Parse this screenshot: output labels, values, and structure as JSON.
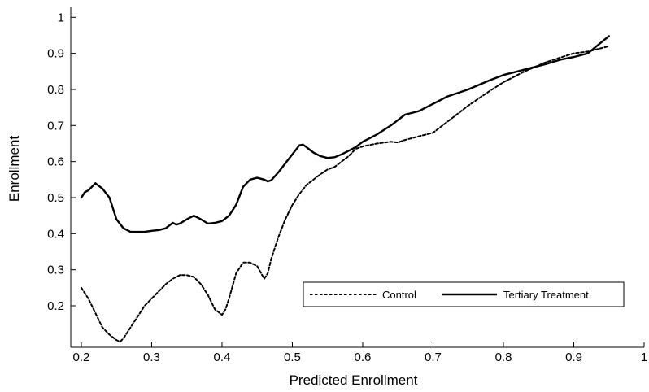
{
  "chart_data": {
    "type": "line",
    "title": "",
    "xlabel": "Predicted Enrollment",
    "ylabel": "Enrollment",
    "xlim": [
      0.185,
      1.0
    ],
    "ylim": [
      0.085,
      1.03
    ],
    "xticks": [
      0.2,
      0.3,
      0.4,
      0.5,
      0.6,
      0.7,
      0.8,
      0.9,
      1
    ],
    "xtick_labels": [
      "0.2",
      "0.3",
      "0.4",
      "0.5",
      "0.6",
      "0.7",
      "0.8",
      "0.9",
      "1"
    ],
    "yticks": [
      0.2,
      0.3,
      0.4,
      0.5,
      0.6,
      0.7,
      0.8,
      0.9,
      1
    ],
    "ytick_labels": [
      "0.2",
      "0.3",
      "0.4",
      "0.5",
      "0.6",
      "0.7",
      "0.8",
      "0.9",
      "1"
    ],
    "grid": false,
    "legend_position": "bottom-right",
    "series": [
      {
        "name": "Control",
        "style": "dashed",
        "color": "#000000",
        "x": [
          0.2,
          0.21,
          0.22,
          0.23,
          0.24,
          0.25,
          0.255,
          0.26,
          0.27,
          0.28,
          0.29,
          0.3,
          0.31,
          0.32,
          0.33,
          0.34,
          0.35,
          0.36,
          0.37,
          0.38,
          0.39,
          0.4,
          0.405,
          0.41,
          0.42,
          0.43,
          0.44,
          0.45,
          0.46,
          0.465,
          0.47,
          0.48,
          0.49,
          0.5,
          0.51,
          0.52,
          0.53,
          0.54,
          0.55,
          0.56,
          0.57,
          0.58,
          0.59,
          0.6,
          0.62,
          0.64,
          0.65,
          0.66,
          0.68,
          0.7,
          0.72,
          0.75,
          0.78,
          0.8,
          0.83,
          0.86,
          0.88,
          0.9,
          0.92,
          0.95
        ],
        "y": [
          0.25,
          0.22,
          0.18,
          0.14,
          0.12,
          0.105,
          0.1,
          0.11,
          0.14,
          0.17,
          0.2,
          0.22,
          0.24,
          0.26,
          0.275,
          0.285,
          0.285,
          0.28,
          0.26,
          0.23,
          0.19,
          0.175,
          0.19,
          0.22,
          0.29,
          0.32,
          0.32,
          0.31,
          0.275,
          0.29,
          0.33,
          0.39,
          0.44,
          0.48,
          0.51,
          0.535,
          0.55,
          0.565,
          0.578,
          0.585,
          0.6,
          0.615,
          0.635,
          0.642,
          0.65,
          0.655,
          0.653,
          0.66,
          0.67,
          0.68,
          0.71,
          0.755,
          0.795,
          0.82,
          0.85,
          0.875,
          0.888,
          0.9,
          0.905,
          0.92
        ]
      },
      {
        "name": "Tertiary Treatment",
        "style": "solid",
        "color": "#000000",
        "x": [
          0.2,
          0.205,
          0.21,
          0.22,
          0.23,
          0.24,
          0.25,
          0.26,
          0.27,
          0.28,
          0.29,
          0.3,
          0.31,
          0.32,
          0.33,
          0.335,
          0.34,
          0.35,
          0.36,
          0.37,
          0.38,
          0.39,
          0.4,
          0.41,
          0.42,
          0.43,
          0.44,
          0.45,
          0.46,
          0.465,
          0.47,
          0.48,
          0.49,
          0.5,
          0.51,
          0.515,
          0.52,
          0.53,
          0.54,
          0.55,
          0.56,
          0.57,
          0.58,
          0.59,
          0.6,
          0.62,
          0.64,
          0.65,
          0.66,
          0.68,
          0.7,
          0.72,
          0.75,
          0.78,
          0.8,
          0.83,
          0.86,
          0.88,
          0.9,
          0.92,
          0.95
        ],
        "y": [
          0.5,
          0.515,
          0.52,
          0.54,
          0.525,
          0.5,
          0.44,
          0.415,
          0.405,
          0.405,
          0.405,
          0.408,
          0.41,
          0.415,
          0.43,
          0.425,
          0.428,
          0.44,
          0.45,
          0.44,
          0.428,
          0.43,
          0.435,
          0.45,
          0.48,
          0.53,
          0.55,
          0.555,
          0.55,
          0.545,
          0.548,
          0.57,
          0.595,
          0.62,
          0.645,
          0.647,
          0.64,
          0.625,
          0.615,
          0.61,
          0.612,
          0.62,
          0.63,
          0.64,
          0.655,
          0.675,
          0.7,
          0.715,
          0.73,
          0.74,
          0.76,
          0.78,
          0.8,
          0.825,
          0.84,
          0.855,
          0.87,
          0.882,
          0.89,
          0.9,
          0.948
        ]
      }
    ]
  }
}
